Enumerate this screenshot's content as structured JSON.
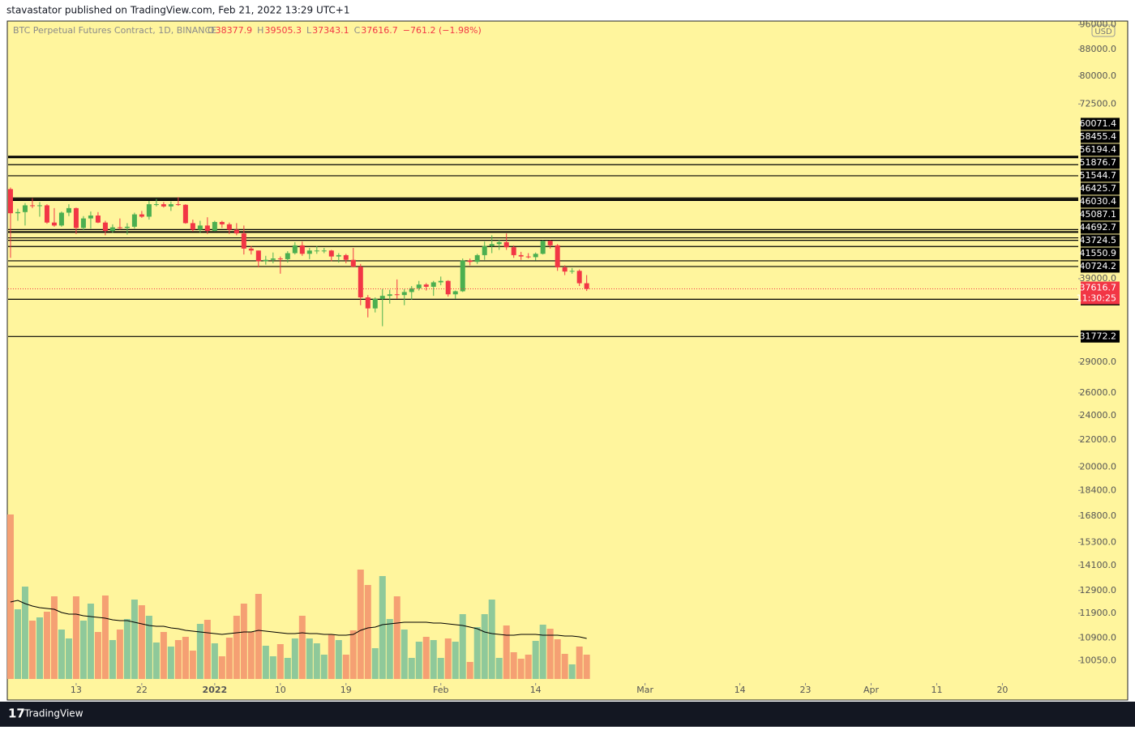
{
  "header": {
    "publisher": "stavastator published on TradingView.com, Feb 21, 2022 13:29 UTC+1",
    "footer": "TradingView"
  },
  "chart_data": {
    "type": "candlestick",
    "title": "BTC Perpetual Futures Contract, 1D, BINANCE",
    "ohlc_labels": [
      "O",
      "H",
      "L",
      "C"
    ],
    "change": "−761.2 (−1.98%)",
    "currency": "USD",
    "countdown": "11:30:25",
    "log_scale": true,
    "up_color": "#4caf50",
    "down_color": "#f23645",
    "volume_up_color": "#8fc99a",
    "volume_down_color": "#f5a073",
    "level_color": "#000000",
    "ma_color": "#000000",
    "xlim": [
      -0.33,
      146.4
    ],
    "xticks": [
      {
        "value": 9,
        "label": "13"
      },
      {
        "value": 18,
        "label": "22"
      },
      {
        "value": 28,
        "label": "2022"
      },
      {
        "value": 37,
        "label": "10"
      },
      {
        "value": 46,
        "label": "19"
      },
      {
        "value": 59,
        "label": "Feb"
      },
      {
        "value": 72,
        "label": "14"
      },
      {
        "value": 87,
        "label": "Mar"
      },
      {
        "value": 100,
        "label": "14"
      },
      {
        "value": 109,
        "label": "23"
      },
      {
        "value": 118,
        "label": "Apr"
      },
      {
        "value": 127,
        "label": "11"
      },
      {
        "value": 136,
        "label": "20"
      }
    ],
    "ylim": [
      9290,
      97300
    ],
    "yticks": [
      {
        "value": 96000,
        "label": "96000.0"
      },
      {
        "value": 88000,
        "label": "88000.0"
      },
      {
        "value": 80000,
        "label": "80000.0"
      },
      {
        "value": 72500,
        "label": "72500.0"
      },
      {
        "value": 39000,
        "label": "39000.0"
      },
      {
        "value": 29000,
        "label": "29000.0"
      },
      {
        "value": 26000,
        "label": "26000.0"
      },
      {
        "value": 24000,
        "label": "24000.0"
      },
      {
        "value": 22000,
        "label": "22000.0"
      },
      {
        "value": 20000,
        "label": "20000.0"
      },
      {
        "value": 18400,
        "label": "18400.0"
      },
      {
        "value": 16800,
        "label": "16800.0"
      },
      {
        "value": 15300,
        "label": "15300.0"
      },
      {
        "value": 14100,
        "label": "14100.0"
      },
      {
        "value": 12900,
        "label": "12900.0"
      },
      {
        "value": 11900,
        "label": "11900.0"
      },
      {
        "value": 10900,
        "label": "10900.0"
      },
      {
        "value": 10050,
        "label": "10050.0"
      }
    ],
    "levels": [
      {
        "value": 60071.4,
        "width": 3
      },
      {
        "value": 58455.4,
        "width": 1.2
      },
      {
        "value": 56194.4,
        "width": 1.2
      },
      {
        "value": 51876.7,
        "width": 2
      },
      {
        "value": 51544.7,
        "width": 2
      },
      {
        "value": 46425.7,
        "width": 1.2
      },
      {
        "value": 46030.4,
        "width": 2
      },
      {
        "value": 45087.1,
        "width": 1.2
      },
      {
        "value": 44692.7,
        "width": 1.2
      },
      {
        "value": 43724.5,
        "width": 1.2
      },
      {
        "value": 41550.9,
        "width": 1.2
      },
      {
        "value": 40724.2,
        "width": 1.2
      },
      {
        "value": 36253.0,
        "width": 1.2
      },
      {
        "value": 31772.2,
        "width": 1.2
      }
    ],
    "open": [
      53600,
      49200,
      49400,
      50600,
      50500,
      50600,
      47600,
      47100,
      49300,
      50100,
      46700,
      48300,
      48800,
      47600,
      46200,
      46800,
      46700,
      46900,
      49000,
      48600,
      50800,
      50800,
      50400,
      50800,
      50700,
      47500,
      46400,
      47100,
      46200,
      47700,
      47300,
      46400,
      45800,
      43400,
      43100,
      41500,
      41700,
      41900,
      41800,
      42700,
      43900,
      42600,
      43100,
      43100,
      43100,
      42200,
      42400,
      41700,
      40700,
      36500,
      35100,
      36300,
      36700,
      36900,
      36800,
      37200,
      37700,
      38200,
      37900,
      38500,
      38700,
      36900,
      37300,
      41600,
      41400,
      42400,
      43800,
      44100,
      44400,
      43600,
      42400,
      42200,
      42100,
      42600,
      44600,
      43900,
      40600,
      40000,
      40100,
      38377.9
    ],
    "high": [
      53900,
      50000,
      51000,
      51900,
      51200,
      50800,
      50100,
      49500,
      50800,
      50200,
      48700,
      49500,
      49400,
      47900,
      47300,
      48300,
      47500,
      49300,
      49600,
      51400,
      51800,
      51200,
      51300,
      52100,
      50800,
      48100,
      47900,
      48500,
      47900,
      47900,
      47600,
      47500,
      47100,
      43800,
      43100,
      42300,
      42800,
      42200,
      43000,
      44400,
      44500,
      43500,
      43800,
      43500,
      43200,
      42700,
      42600,
      43500,
      41100,
      36800,
      36500,
      37600,
      37500,
      38900,
      37600,
      38000,
      38700,
      38400,
      38700,
      39300,
      38800,
      37400,
      41900,
      41900,
      42600,
      44500,
      45500,
      44800,
      45800,
      43900,
      42900,
      42700,
      42800,
      44700,
      44700,
      44100,
      40900,
      40500,
      40300,
      39505.3
    ],
    "low": [
      42000,
      47900,
      47100,
      50100,
      48600,
      47400,
      46900,
      46900,
      48700,
      45700,
      46300,
      46600,
      47500,
      45500,
      45900,
      46400,
      45600,
      46600,
      48400,
      48100,
      50400,
      50200,
      49600,
      50500,
      47400,
      46100,
      45900,
      45700,
      46100,
      46700,
      45700,
      45500,
      42500,
      42500,
      40600,
      41000,
      41200,
      39700,
      41300,
      42500,
      42300,
      41800,
      42600,
      42700,
      41500,
      41300,
      41200,
      40600,
      35500,
      34000,
      34600,
      32950,
      35700,
      36300,
      35500,
      36200,
      37400,
      37400,
      36700,
      38100,
      36600,
      36300,
      37200,
      40900,
      41100,
      41700,
      42700,
      43200,
      43200,
      42000,
      41700,
      41900,
      41600,
      42500,
      43400,
      40100,
      39500,
      39700,
      38000,
      37343.1
    ],
    "close": [
      49200,
      49400,
      50600,
      50500,
      50600,
      47600,
      47100,
      49300,
      50100,
      46700,
      48300,
      48800,
      47600,
      46200,
      46800,
      46700,
      46900,
      49000,
      48600,
      50800,
      50800,
      50400,
      50800,
      50700,
      47500,
      46400,
      47100,
      46200,
      47700,
      47300,
      46400,
      45800,
      43400,
      43100,
      41500,
      41700,
      41900,
      41800,
      42700,
      43900,
      42600,
      43100,
      43100,
      43100,
      42200,
      42400,
      41700,
      40700,
      36500,
      35100,
      36300,
      36700,
      36900,
      36800,
      37200,
      37700,
      38200,
      37900,
      38500,
      38700,
      36900,
      37300,
      41600,
      41400,
      42400,
      43800,
      44100,
      44400,
      43600,
      42400,
      42200,
      42100,
      42600,
      44600,
      43900,
      40600,
      40000,
      40100,
      38377.9,
      37616.7
    ],
    "volume": [
      203,
      86,
      114,
      72,
      76,
      83,
      102,
      61,
      50,
      102,
      72,
      93,
      58,
      103,
      48,
      61,
      74,
      98,
      91,
      78,
      45,
      58,
      40,
      48,
      52,
      35,
      68,
      73,
      44,
      28,
      51,
      78,
      93,
      58,
      105,
      41,
      28,
      43,
      26,
      50,
      78,
      50,
      44,
      30,
      55,
      48,
      30,
      60,
      135,
      116,
      38,
      127,
      74,
      102,
      61,
      26,
      46,
      52,
      48,
      26,
      50,
      46,
      80,
      21,
      64,
      80,
      98,
      26,
      66,
      33,
      25,
      30,
      47,
      67,
      62,
      49,
      31,
      18,
      40,
      30
    ],
    "volume_ma": [
      95,
      97,
      93,
      90,
      88,
      87,
      86,
      82,
      80,
      80,
      78,
      77,
      76,
      75,
      73,
      72,
      72,
      70,
      68,
      66,
      65,
      65,
      63,
      62,
      60,
      59,
      58,
      57,
      56,
      55,
      56,
      57,
      58,
      58,
      60,
      59,
      58,
      57,
      56,
      56,
      57,
      56,
      56,
      55,
      55,
      54,
      54,
      55,
      60,
      63,
      64,
      67,
      68,
      69,
      70,
      70,
      70,
      70,
      69,
      69,
      68,
      67,
      66,
      64,
      62,
      58,
      56,
      55,
      54,
      54,
      55,
      55,
      55,
      54,
      54,
      54,
      53,
      53,
      52,
      50
    ]
  }
}
